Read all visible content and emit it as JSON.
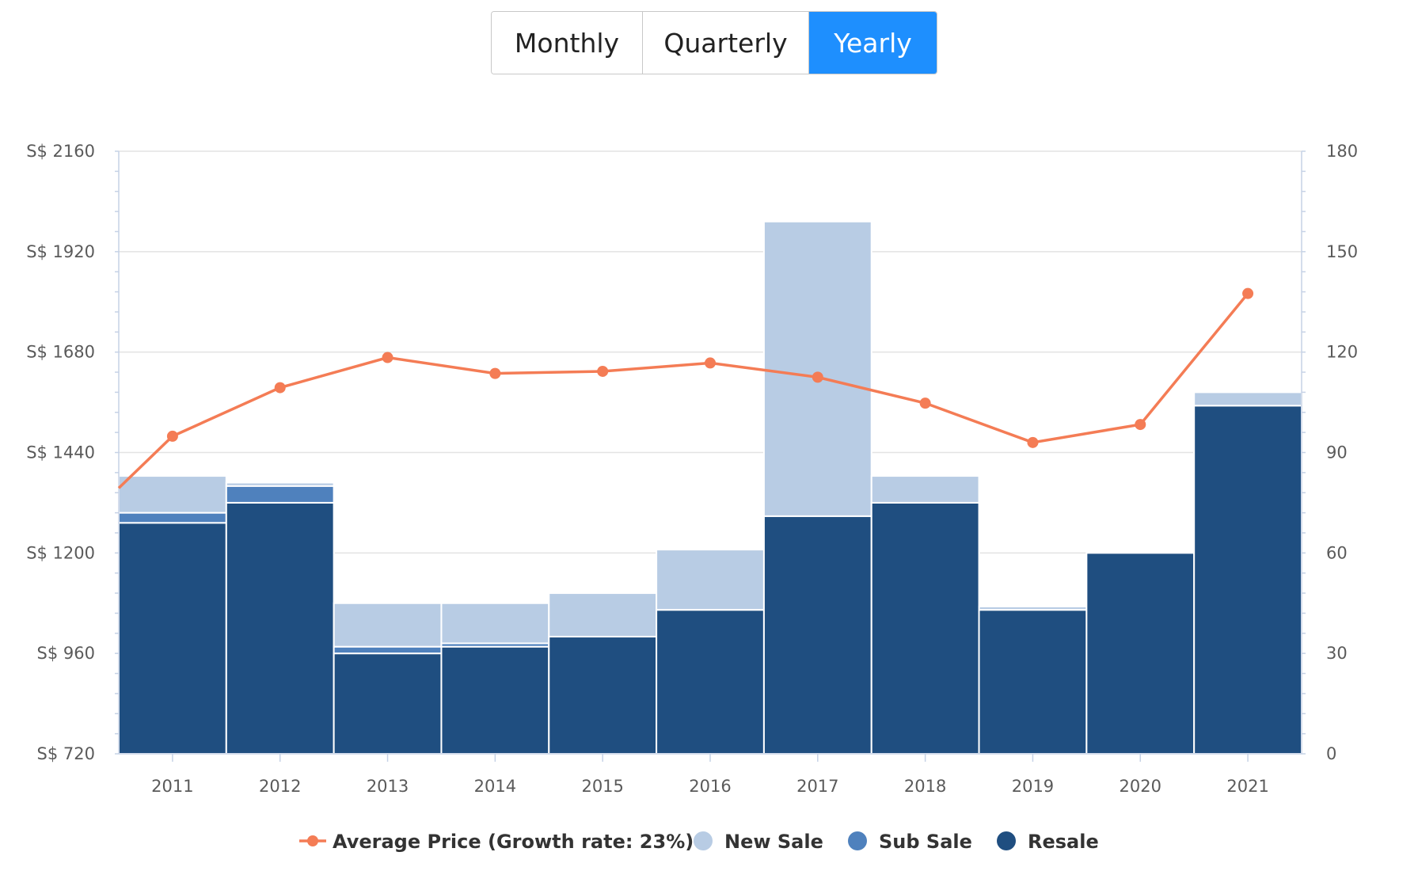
{
  "toggle": {
    "buttons": [
      {
        "label": "Monthly",
        "active": false
      },
      {
        "label": "Quarterly",
        "active": false
      },
      {
        "label": "Yearly",
        "active": true
      }
    ]
  },
  "colors": {
    "new_sale": "#b8cce4",
    "sub_sale": "#4f81bd",
    "resale": "#1f4e80",
    "avg_price": "#f47c55",
    "toggle_active": "#1e8ffe"
  },
  "chart_data": {
    "type": "bar",
    "stacked": true,
    "categories": [
      "2011",
      "2012",
      "2013",
      "2014",
      "2015",
      "2016",
      "2017",
      "2018",
      "2019",
      "2020",
      "2021"
    ],
    "left_axis": {
      "ticks": [
        "S$ 720",
        "S$ 960",
        "S$ 1200",
        "S$ 1440",
        "S$ 1680",
        "S$ 1920",
        "S$ 2160"
      ],
      "range": [
        720,
        2160
      ]
    },
    "right_axis": {
      "ticks": [
        "0",
        "30",
        "60",
        "90",
        "120",
        "150",
        "180"
      ],
      "range": [
        0,
        180
      ]
    },
    "series": [
      {
        "name": "Resale",
        "axis": "right",
        "values": [
          69,
          75,
          30,
          32,
          35,
          43,
          71,
          75,
          43,
          60,
          104
        ]
      },
      {
        "name": "Sub Sale",
        "axis": "right",
        "values": [
          3,
          5,
          2,
          1,
          0,
          0,
          0,
          0,
          0,
          0,
          0
        ]
      },
      {
        "name": "New Sale",
        "axis": "right",
        "values": [
          11,
          1,
          13,
          12,
          13,
          18,
          88,
          8,
          1,
          0,
          4
        ]
      },
      {
        "name": "Average Price (Growth rate: 23%)",
        "type": "line",
        "axis": "left",
        "values": [
          1479,
          1595,
          1667,
          1629,
          1634,
          1654,
          1620,
          1558,
          1464,
          1507,
          1820
        ],
        "start_value": 1355
      }
    ],
    "legend": [
      "Average Price (Growth rate: 23%)",
      "New Sale",
      "Sub Sale",
      "Resale"
    ],
    "legend_position": "bottom",
    "grid": true
  }
}
